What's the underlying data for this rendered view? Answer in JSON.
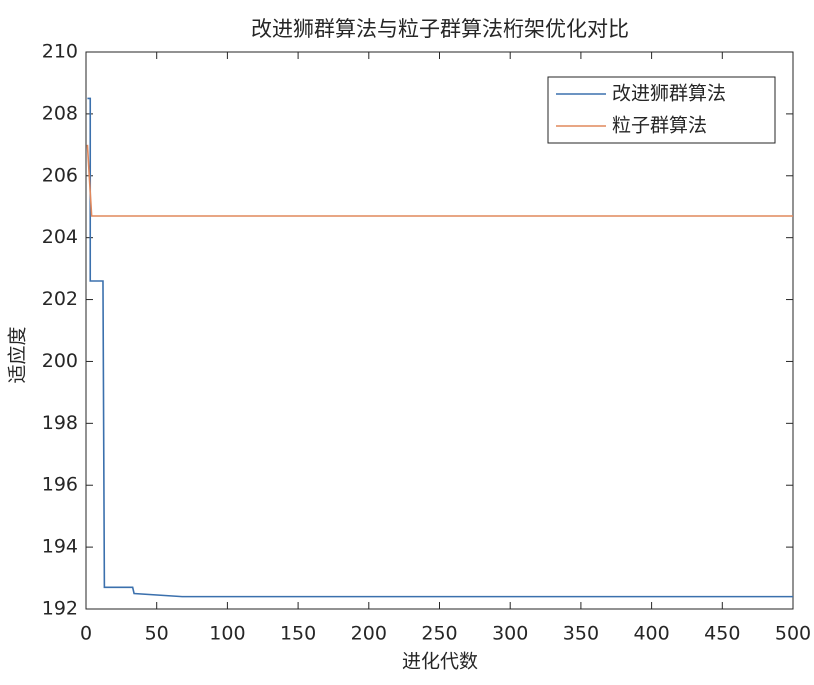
{
  "chart_data": {
    "type": "line",
    "title": "改进狮群算法与粒子群算法桁架优化对比",
    "x_label": "进化代数",
    "y_label": "适应度",
    "series": [
      {
        "name": "改进狮群算法",
        "color": "#3b70ad",
        "x": [
          1,
          3,
          3,
          12,
          13,
          33,
          34,
          68,
          500
        ],
        "values": [
          208.5,
          208.5,
          202.6,
          202.6,
          192.7,
          192.7,
          192.5,
          192.4,
          192.4
        ]
      },
      {
        "name": "粒子群算法",
        "color": "#e0885c",
        "x": [
          1,
          4,
          500
        ],
        "values": [
          207,
          204.7,
          204.7
        ]
      }
    ],
    "xlim": [
      0,
      500
    ],
    "xticks": [
      0,
      50,
      100,
      150,
      200,
      250,
      300,
      350,
      400,
      450,
      500
    ],
    "ylim": [
      192,
      210
    ],
    "yticks": [
      192,
      194,
      196,
      198,
      200,
      202,
      204,
      206,
      208,
      210
    ],
    "grid": false,
    "legend": "northeast"
  }
}
